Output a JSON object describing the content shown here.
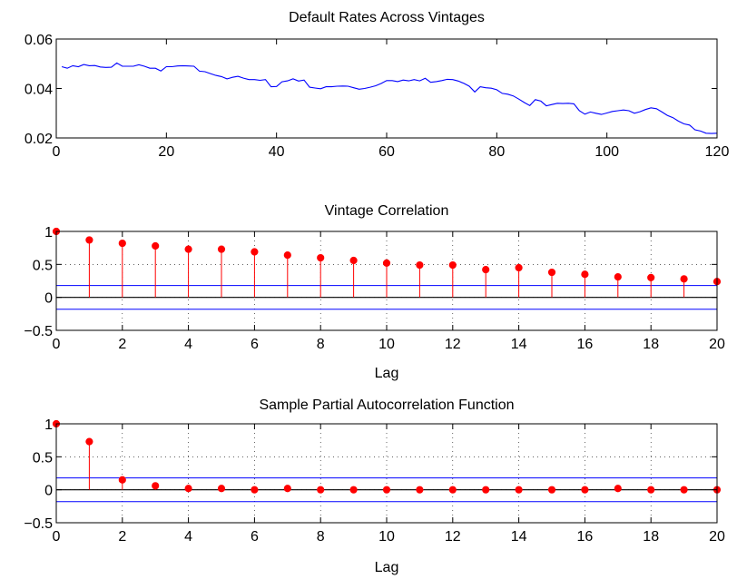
{
  "chart_data": [
    {
      "type": "line",
      "title": "Default Rates Across Vintages",
      "xlabel": "",
      "ylabel": "",
      "xlim": [
        0,
        120
      ],
      "ylim": [
        0.02,
        0.06
      ],
      "xticks": [
        0,
        20,
        40,
        60,
        80,
        100,
        120
      ],
      "xtick_labels": [
        "0",
        "20",
        "40",
        "60",
        "80",
        "100",
        "120"
      ],
      "yticks": [
        0.02,
        0.04,
        0.06
      ],
      "ytick_labels": [
        "0.02",
        "0.04",
        "0.06"
      ],
      "grid": false,
      "line_color": "#0000ff",
      "series": [
        {
          "x": [
            1,
            2,
            3,
            4,
            5,
            6,
            7,
            8,
            9,
            10,
            11,
            12,
            13,
            14,
            15,
            16,
            17,
            18,
            19,
            20,
            21,
            22,
            23,
            24,
            25,
            26,
            27,
            28,
            29,
            30,
            31,
            32,
            33,
            34,
            35,
            36,
            37,
            38,
            39,
            40,
            41,
            42,
            43,
            44,
            45,
            46,
            47,
            48,
            49,
            50,
            51,
            52,
            53,
            54,
            55,
            56,
            57,
            58,
            59,
            60,
            61,
            62,
            63,
            64,
            65,
            66,
            67,
            68,
            69,
            70,
            71,
            72,
            73,
            74,
            75,
            76,
            77,
            78,
            79,
            80,
            81,
            82,
            83,
            84,
            85,
            86,
            87,
            88,
            89,
            90,
            91,
            92,
            93,
            94,
            95,
            96,
            97,
            98,
            99,
            100,
            101,
            102,
            103,
            104,
            105,
            106,
            107,
            108,
            109,
            110,
            111,
            112,
            113,
            114,
            115,
            116,
            117,
            118,
            119,
            120
          ],
          "values": [
            0.0488,
            0.0482,
            0.0492,
            0.0488,
            0.0497,
            0.0492,
            0.0493,
            0.0487,
            0.0485,
            0.0486,
            0.0503,
            0.049,
            0.049,
            0.049,
            0.0496,
            0.049,
            0.0482,
            0.0482,
            0.0471,
            0.0488,
            0.0488,
            0.0491,
            0.0492,
            0.0491,
            0.049,
            0.047,
            0.0468,
            0.046,
            0.0453,
            0.0448,
            0.0439,
            0.0445,
            0.0449,
            0.0442,
            0.0436,
            0.0436,
            0.0433,
            0.0436,
            0.0407,
            0.0408,
            0.0427,
            0.0431,
            0.0439,
            0.043,
            0.0434,
            0.0405,
            0.0402,
            0.0399,
            0.0407,
            0.0407,
            0.0409,
            0.041,
            0.0409,
            0.0403,
            0.0397,
            0.04,
            0.0405,
            0.0411,
            0.042,
            0.0432,
            0.0432,
            0.0428,
            0.0434,
            0.0431,
            0.0436,
            0.0431,
            0.0441,
            0.0425,
            0.0428,
            0.0432,
            0.0437,
            0.0436,
            0.043,
            0.0421,
            0.0409,
            0.0386,
            0.0407,
            0.0403,
            0.0401,
            0.0395,
            0.038,
            0.0377,
            0.037,
            0.0357,
            0.0343,
            0.0331,
            0.0355,
            0.0349,
            0.033,
            0.0335,
            0.034,
            0.0339,
            0.034,
            0.0338,
            0.031,
            0.0296,
            0.0305,
            0.03,
            0.0295,
            0.0301,
            0.0307,
            0.031,
            0.0313,
            0.031,
            0.03,
            0.0306,
            0.0315,
            0.0322,
            0.0318,
            0.0305,
            0.0291,
            0.0282,
            0.0268,
            0.0257,
            0.0252,
            0.0233,
            0.0228,
            0.0219,
            0.0218,
            0.0219
          ]
        }
      ]
    },
    {
      "type": "stem",
      "title": "Vintage Correlation",
      "xlabel": "Lag",
      "ylabel": "",
      "xlim": [
        0,
        20
      ],
      "ylim": [
        -0.5,
        1
      ],
      "xticks": [
        0,
        2,
        4,
        6,
        8,
        10,
        12,
        14,
        16,
        18,
        20
      ],
      "xtick_labels": [
        "0",
        "2",
        "4",
        "6",
        "8",
        "10",
        "12",
        "14",
        "16",
        "18",
        "20"
      ],
      "yticks": [
        -0.5,
        0,
        0.5,
        1
      ],
      "ytick_labels": [
        "−0.5",
        "0",
        "0.5",
        "1"
      ],
      "grid": true,
      "stem_color": "#ff0000",
      "bound_color": "#0000ff",
      "bounds": [
        0.18,
        -0.18
      ],
      "lags": [
        0,
        1,
        2,
        3,
        4,
        5,
        6,
        7,
        8,
        9,
        10,
        11,
        12,
        13,
        14,
        15,
        16,
        17,
        18,
        19,
        20
      ],
      "values": [
        1.0,
        0.87,
        0.82,
        0.78,
        0.73,
        0.73,
        0.69,
        0.64,
        0.6,
        0.56,
        0.52,
        0.49,
        0.49,
        0.42,
        0.45,
        0.38,
        0.35,
        0.31,
        0.3,
        0.28,
        0.24
      ]
    },
    {
      "type": "stem",
      "title": "Sample Partial Autocorrelation Function",
      "xlabel": "Lag",
      "ylabel": "",
      "xlim": [
        0,
        20
      ],
      "ylim": [
        -0.5,
        1
      ],
      "xticks": [
        0,
        2,
        4,
        6,
        8,
        10,
        12,
        14,
        16,
        18,
        20
      ],
      "xtick_labels": [
        "0",
        "2",
        "4",
        "6",
        "8",
        "10",
        "12",
        "14",
        "16",
        "18",
        "20"
      ],
      "yticks": [
        -0.5,
        0,
        0.5,
        1
      ],
      "ytick_labels": [
        "−0.5",
        "0",
        "0.5",
        "1"
      ],
      "grid": true,
      "stem_color": "#ff0000",
      "bound_color": "#0000ff",
      "bounds": [
        0.18,
        -0.18
      ],
      "lags": [
        0,
        1,
        2,
        3,
        4,
        5,
        6,
        7,
        8,
        9,
        10,
        11,
        12,
        13,
        14,
        15,
        16,
        17,
        18,
        19,
        20
      ],
      "values": [
        1.0,
        0.73,
        0.15,
        0.06,
        0.02,
        0.02,
        0.0,
        0.02,
        0.0,
        0.0,
        0.0,
        0.0,
        0.0,
        0.0,
        0.0,
        0.0,
        0.0,
        0.02,
        0.0,
        0.0,
        0.0
      ]
    }
  ]
}
